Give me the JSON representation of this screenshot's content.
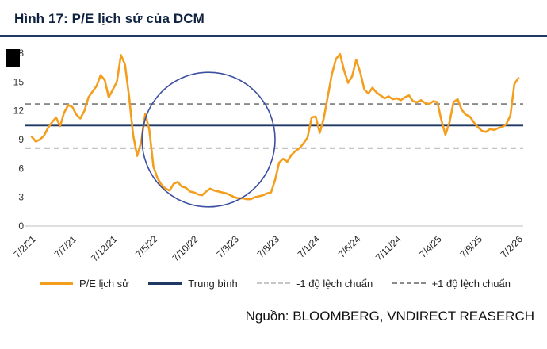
{
  "header": {
    "title": "Hình 17: P/E lịch sử của DCM"
  },
  "chart_data": {
    "type": "line",
    "title": "P/E lịch sử của DCM",
    "ylim": [
      0,
      18
    ],
    "y_ticks": [
      0,
      3,
      6,
      9,
      12,
      15,
      18
    ],
    "x_tick_labels": [
      "7/2/21",
      "7/7/21",
      "7/12/21",
      "7/5/22",
      "7/10/22",
      "7/3/23",
      "7/8/23",
      "7/1/24",
      "7/6/24",
      "7/11/24",
      "7/4/25",
      "7/9/25",
      "7/2/26"
    ],
    "x_tick_months": [
      0,
      5,
      10,
      15,
      20,
      25,
      30,
      35,
      40,
      45,
      50,
      55,
      60
    ],
    "x_step_months": 0.5,
    "series": [
      {
        "name": "P/E lịch sử",
        "color": "#F49E1D",
        "values": [
          9.3,
          8.8,
          9.0,
          9.4,
          10.2,
          10.8,
          11.3,
          10.4,
          11.8,
          12.6,
          12.4,
          11.6,
          11.2,
          12.0,
          13.4,
          14.0,
          14.6,
          15.7,
          15.2,
          13.4,
          14.2,
          15.0,
          17.8,
          16.8,
          13.5,
          9.5,
          7.3,
          8.8,
          11.7,
          10.0,
          6.2,
          5.0,
          4.3,
          3.9,
          3.7,
          4.4,
          4.6,
          4.1,
          4.0,
          3.6,
          3.5,
          3.3,
          3.2,
          3.6,
          3.9,
          3.7,
          3.6,
          3.5,
          3.4,
          3.2,
          3.0,
          2.9,
          2.9,
          2.8,
          2.8,
          3.0,
          3.1,
          3.2,
          3.4,
          3.5,
          4.8,
          6.6,
          7.0,
          6.7,
          7.4,
          7.8,
          8.1,
          8.6,
          9.2,
          11.3,
          11.4,
          9.7,
          11.2,
          13.5,
          15.8,
          17.4,
          17.9,
          16.2,
          14.9,
          15.6,
          17.3,
          16.0,
          14.2,
          13.8,
          14.4,
          13.9,
          13.6,
          13.3,
          13.5,
          13.2,
          13.3,
          13.1,
          13.4,
          13.6,
          13.0,
          12.9,
          13.1,
          12.8,
          12.7,
          13.0,
          12.9,
          11.0,
          9.5,
          10.8,
          12.9,
          13.2,
          12.1,
          11.6,
          11.4,
          10.8,
          10.3,
          9.9,
          9.8,
          10.1,
          10.0,
          10.2,
          10.3,
          10.6,
          11.5,
          14.8,
          15.4
        ]
      }
    ],
    "reference_lines": [
      {
        "name": "Trung bình",
        "value": 10.5,
        "style": "solid",
        "color": "#1F3864"
      },
      {
        "name": "-1 độ lệch chuẩn",
        "value": 8.1,
        "style": "dashed",
        "color": "#C6C6C6"
      },
      {
        "name": "+1 độ lệch chuẩn",
        "value": 12.7,
        "style": "dashed",
        "color": "#8A8A8A"
      }
    ],
    "annotation_ellipse": {
      "center_month": 21.8,
      "center_value": 9.0,
      "radius_months": 8.2,
      "radius_value": 7.0,
      "color": "#3D4FA0"
    },
    "legend_items": [
      {
        "label": "P/E lịch sử",
        "style": "solid",
        "color": "#F49E1D"
      },
      {
        "label": "Trung bình",
        "style": "solid",
        "color": "#1F3864"
      },
      {
        "label": "-1 độ lệch chuẩn",
        "style": "dashed",
        "color": "#C6C6C6"
      },
      {
        "label": "+1 độ lệch chuẩn",
        "style": "dashed",
        "color": "#8A8A8A"
      }
    ]
  },
  "footer": {
    "source": "Nguồn: BLOOMBERG, VNDIRECT REASERCH"
  }
}
